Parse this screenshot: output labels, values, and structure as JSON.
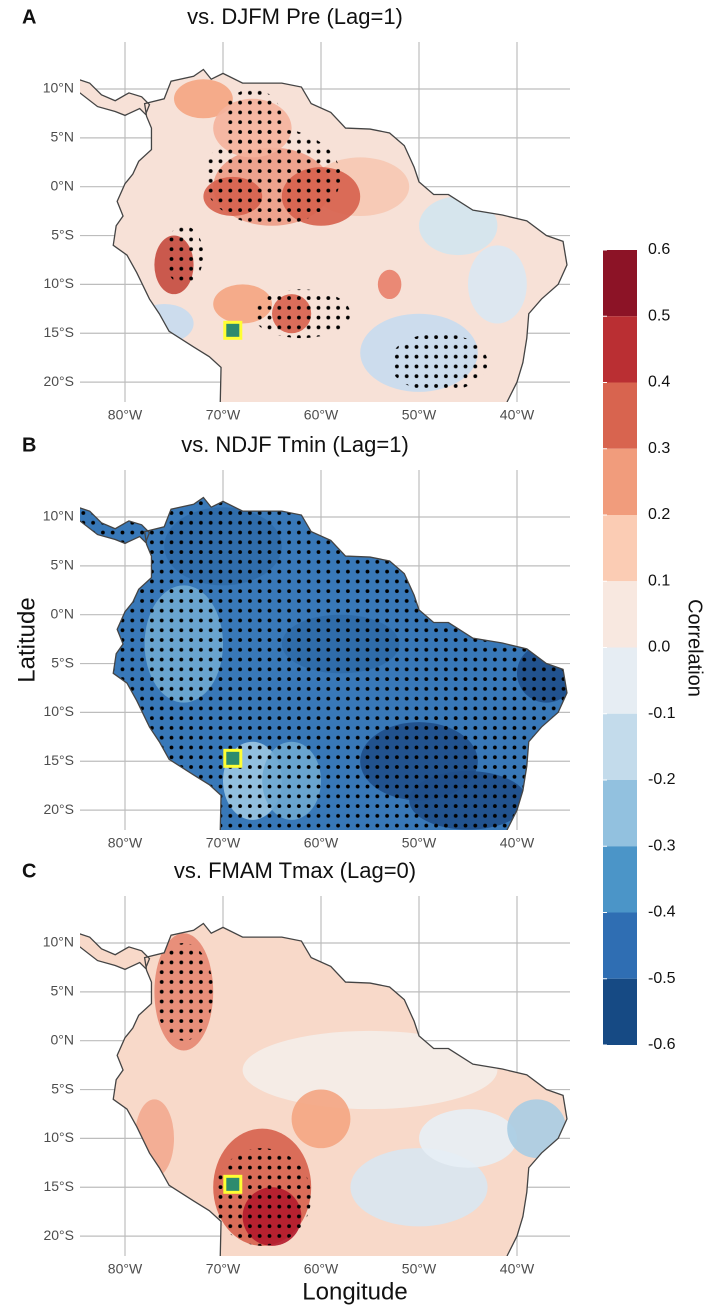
{
  "panels": [
    {
      "label": "A",
      "title": "vs. DJFM Pre (Lag=1)"
    },
    {
      "label": "B",
      "title": "vs. NDJF Tmin (Lag=1)"
    },
    {
      "label": "C",
      "title": "vs. FMAM Tmax (Lag=0)"
    }
  ],
  "x_axis": {
    "title": "Longitude",
    "ticks": [
      {
        "value": -80,
        "label": "80°W"
      },
      {
        "value": -70,
        "label": "70°W"
      },
      {
        "value": -60,
        "label": "60°W"
      },
      {
        "value": -50,
        "label": "50°W"
      },
      {
        "value": -40,
        "label": "40°W"
      }
    ]
  },
  "y_axis": {
    "title": "Latitude",
    "ticks": [
      {
        "value": 10,
        "label": "10°N"
      },
      {
        "value": 5,
        "label": "5°N"
      },
      {
        "value": 0,
        "label": "0°N"
      },
      {
        "value": -5,
        "label": "5°S"
      },
      {
        "value": -10,
        "label": "10°S"
      },
      {
        "value": -15,
        "label": "15°S"
      },
      {
        "value": -20,
        "label": "20°S"
      }
    ]
  },
  "legend": {
    "title": "Correlation",
    "ticks": [
      0.6,
      0.5,
      0.4,
      0.3,
      0.2,
      0.1,
      {
        "value": 0,
        "label": "0.0"
      },
      -0.1,
      -0.2,
      -0.3,
      -0.4,
      -0.5,
      -0.6
    ],
    "colors": [
      "#8c1326",
      "#ba2f33",
      "#d8644f",
      "#f19c7c",
      "#fbccb4",
      "#f8e8e0",
      "#e6edf3",
      "#c3dbeb",
      "#92c1df",
      "#4b95c8",
      "#2f6eb3",
      "#164a84"
    ]
  }
}
